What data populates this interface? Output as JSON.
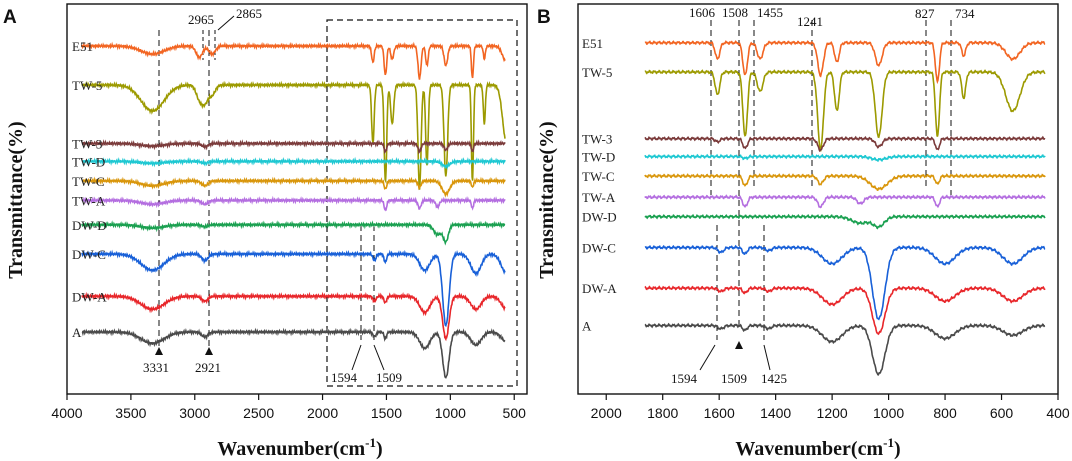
{
  "chart_data": [
    {
      "panel": "A",
      "type": "line",
      "title": "",
      "xlabel": "Wavenumber(cm-1)",
      "ylabel": "Transmittance(%)",
      "xlim": [
        4000,
        400
      ],
      "ylim": [
        0,
        1
      ],
      "x_ticks": [
        4000,
        3500,
        3000,
        2500,
        2000,
        1500,
        1000,
        500
      ],
      "y_ticks": [],
      "grid": false,
      "legend": "series names printed beside each curve on the left",
      "series": [
        {
          "name": "E51",
          "color": "#f26522",
          "offset": 0.92,
          "bands": [
            [
              3331,
              0.025,
              90
            ],
            [
              2965,
              0.035,
              25
            ],
            [
              2865,
              0.025,
              25
            ],
            [
              1606,
              0.05,
              10
            ],
            [
              1508,
              0.09,
              10
            ],
            [
              1455,
              0.04,
              12
            ],
            [
              1241,
              0.1,
              12
            ],
            [
              1183,
              0.06,
              10
            ],
            [
              1035,
              0.06,
              14
            ],
            [
              827,
              0.1,
              8
            ],
            [
              734,
              0.04,
              8
            ],
            [
              560,
              0.05,
              30
            ]
          ]
        },
        {
          "name": "TW-5",
          "color": "#9c9a00",
          "offset": 0.8,
          "bands": [
            [
              3331,
              0.08,
              90
            ],
            [
              2965,
              0.04,
              25
            ],
            [
              2921,
              0.05,
              25
            ],
            [
              2865,
              0.03,
              25
            ],
            [
              1606,
              0.18,
              10
            ],
            [
              1508,
              0.3,
              10
            ],
            [
              1455,
              0.12,
              12
            ],
            [
              1241,
              0.32,
              12
            ],
            [
              1183,
              0.25,
              10
            ],
            [
              1035,
              0.28,
              14
            ],
            [
              827,
              0.3,
              8
            ],
            [
              734,
              0.12,
              8
            ],
            [
              560,
              0.18,
              30
            ]
          ]
        },
        {
          "name": "TW-3",
          "color": "#7b3b3b",
          "offset": 0.62,
          "bands": [
            [
              3331,
              0.008,
              90
            ],
            [
              2921,
              0.01,
              25
            ],
            [
              1508,
              0.025,
              10
            ],
            [
              1241,
              0.025,
              12
            ],
            [
              1035,
              0.02,
              14
            ],
            [
              827,
              0.025,
              8
            ]
          ]
        },
        {
          "name": "TW-D",
          "color": "#1ec8d2",
          "offset": 0.565,
          "bands": [
            [
              3331,
              0.006,
              90
            ],
            [
              2921,
              0.006,
              25
            ],
            [
              1035,
              0.015,
              30
            ]
          ]
        },
        {
          "name": "TW-C",
          "color": "#d9960b",
          "offset": 0.505,
          "bands": [
            [
              3331,
              0.015,
              90
            ],
            [
              2921,
              0.015,
              25
            ],
            [
              1508,
              0.025,
              10
            ],
            [
              1241,
              0.02,
              12
            ],
            [
              1035,
              0.04,
              30
            ],
            [
              827,
              0.02,
              8
            ]
          ]
        },
        {
          "name": "TW-A",
          "color": "#b46ee0",
          "offset": 0.445,
          "bands": [
            [
              3331,
              0.012,
              90
            ],
            [
              2921,
              0.012,
              25
            ],
            [
              1508,
              0.03,
              10
            ],
            [
              1241,
              0.025,
              12
            ],
            [
              1100,
              0.02,
              14
            ],
            [
              827,
              0.025,
              8
            ]
          ]
        },
        {
          "name": "DW-D",
          "color": "#1aa050",
          "offset": 0.37,
          "bands": [
            [
              3331,
              0.01,
              90
            ],
            [
              2921,
              0.006,
              25
            ],
            [
              1100,
              0.03,
              30
            ],
            [
              1035,
              0.05,
              20
            ]
          ]
        },
        {
          "name": "DW-C",
          "color": "#1860d8",
          "offset": 0.28,
          "bands": [
            [
              3331,
              0.05,
              90
            ],
            [
              2921,
              0.02,
              25
            ],
            [
              1594,
              0.02,
              12
            ],
            [
              1509,
              0.025,
              10
            ],
            [
              1200,
              0.05,
              40
            ],
            [
              1035,
              0.22,
              25
            ],
            [
              800,
              0.06,
              40
            ],
            [
              560,
              0.06,
              40
            ]
          ]
        },
        {
          "name": "DW-A",
          "color": "#e8262a",
          "offset": 0.15,
          "bands": [
            [
              3331,
              0.04,
              90
            ],
            [
              2921,
              0.015,
              25
            ],
            [
              1594,
              0.015,
              12
            ],
            [
              1509,
              0.02,
              10
            ],
            [
              1200,
              0.05,
              40
            ],
            [
              1035,
              0.13,
              25
            ],
            [
              800,
              0.04,
              40
            ],
            [
              560,
              0.04,
              40
            ]
          ]
        },
        {
          "name": "A",
          "color": "#4a4a4a",
          "offset": 0.04,
          "bands": [
            [
              3331,
              0.035,
              90
            ],
            [
              2921,
              0.015,
              25
            ],
            [
              1594,
              0.015,
              12
            ],
            [
              1509,
              0.02,
              10
            ],
            [
              1200,
              0.05,
              40
            ],
            [
              1035,
              0.14,
              25
            ],
            [
              800,
              0.04,
              40
            ],
            [
              560,
              0.03,
              40
            ]
          ]
        }
      ],
      "annotations": [
        "3331",
        "2921",
        "2965",
        "2865",
        "1594",
        "1509"
      ]
    },
    {
      "panel": "B",
      "type": "line",
      "title": "",
      "xlabel": "Wavenumber(cm-1)",
      "ylabel": "Transmittance(%)",
      "xlim": [
        2100,
        400
      ],
      "ylim": [
        0,
        1
      ],
      "x_ticks": [
        2000,
        1800,
        1600,
        1400,
        1200,
        1000,
        800,
        600,
        400
      ],
      "y_ticks": [],
      "grid": false,
      "legend": "series names printed beside each curve on the left",
      "series": [
        {
          "name": "E51",
          "color": "#f26522",
          "offset": 0.93,
          "bands": [
            [
              1606,
              0.05,
              8
            ],
            [
              1508,
              0.1,
              8
            ],
            [
              1455,
              0.05,
              10
            ],
            [
              1241,
              0.1,
              10
            ],
            [
              1183,
              0.06,
              8
            ],
            [
              1035,
              0.07,
              12
            ],
            [
              827,
              0.12,
              7
            ],
            [
              734,
              0.04,
              7
            ],
            [
              560,
              0.05,
              25
            ]
          ]
        },
        {
          "name": "TW-5",
          "color": "#9c9a00",
          "offset": 0.84,
          "bands": [
            [
              1606,
              0.07,
              8
            ],
            [
              1508,
              0.2,
              8
            ],
            [
              1455,
              0.06,
              10
            ],
            [
              1241,
              0.24,
              10
            ],
            [
              1183,
              0.12,
              8
            ],
            [
              1035,
              0.2,
              12
            ],
            [
              827,
              0.2,
              7
            ],
            [
              734,
              0.08,
              7
            ],
            [
              560,
              0.12,
              25
            ]
          ]
        },
        {
          "name": "TW-3",
          "color": "#7b3b3b",
          "offset": 0.635,
          "bands": [
            [
              1606,
              0.01,
              8
            ],
            [
              1508,
              0.03,
              8
            ],
            [
              1241,
              0.035,
              10
            ],
            [
              1035,
              0.025,
              12
            ],
            [
              827,
              0.035,
              7
            ]
          ]
        },
        {
          "name": "TW-D",
          "color": "#1ec8d2",
          "offset": 0.58,
          "bands": [
            [
              1508,
              0.006,
              8
            ],
            [
              1035,
              0.01,
              25
            ]
          ]
        },
        {
          "name": "TW-C",
          "color": "#d9960b",
          "offset": 0.52,
          "bands": [
            [
              1508,
              0.03,
              8
            ],
            [
              1241,
              0.025,
              10
            ],
            [
              1035,
              0.04,
              30
            ],
            [
              827,
              0.025,
              7
            ]
          ]
        },
        {
          "name": "TW-A",
          "color": "#b46ee0",
          "offset": 0.455,
          "bands": [
            [
              1508,
              0.03,
              8
            ],
            [
              1241,
              0.03,
              10
            ],
            [
              1100,
              0.02,
              12
            ],
            [
              827,
              0.03,
              7
            ]
          ]
        },
        {
          "name": "DW-D",
          "color": "#1aa050",
          "offset": 0.395,
          "bands": [
            [
              1100,
              0.02,
              30
            ],
            [
              1035,
              0.03,
              20
            ]
          ]
        },
        {
          "name": "DW-C",
          "color": "#1860d8",
          "offset": 0.3,
          "bands": [
            [
              1594,
              0.015,
              10
            ],
            [
              1509,
              0.02,
              8
            ],
            [
              1425,
              0.01,
              10
            ],
            [
              1200,
              0.05,
              35
            ],
            [
              1035,
              0.22,
              22
            ],
            [
              800,
              0.05,
              35
            ],
            [
              560,
              0.05,
              35
            ]
          ]
        },
        {
          "name": "DW-A",
          "color": "#e8262a",
          "offset": 0.175,
          "bands": [
            [
              1594,
              0.01,
              10
            ],
            [
              1509,
              0.015,
              8
            ],
            [
              1425,
              0.01,
              10
            ],
            [
              1200,
              0.05,
              35
            ],
            [
              1035,
              0.14,
              22
            ],
            [
              800,
              0.04,
              35
            ],
            [
              560,
              0.04,
              35
            ]
          ]
        },
        {
          "name": "A",
          "color": "#4a4a4a",
          "offset": 0.06,
          "bands": [
            [
              1594,
              0.01,
              10
            ],
            [
              1509,
              0.015,
              8
            ],
            [
              1425,
              0.01,
              10
            ],
            [
              1200,
              0.05,
              35
            ],
            [
              1035,
              0.15,
              22
            ],
            [
              800,
              0.04,
              35
            ],
            [
              560,
              0.03,
              35
            ]
          ]
        }
      ],
      "annotations": [
        "1606",
        "1508",
        "1455",
        "1241",
        "827",
        "734",
        "1594",
        "1509",
        "1425"
      ]
    }
  ],
  "panels": {
    "a": {
      "label": "A",
      "xlabel": "Wavenumber(cm",
      "xlabel_sup": "-1",
      "xlabel_close": ")",
      "ylabel": "Transmittance(%)",
      "peaks_top": [
        "2965",
        "2865"
      ],
      "peaks_bottom": [
        "3331",
        "2921",
        "1594",
        "1509"
      ]
    },
    "b": {
      "label": "B",
      "xlabel": "Wavenumber(cm",
      "xlabel_sup": "-1",
      "xlabel_close": ")",
      "ylabel": "Transmittance(%)",
      "peaks_top": [
        "1606",
        "1508",
        "1455",
        "1241",
        "827",
        "734"
      ],
      "peaks_bottom": [
        "1594",
        "1509",
        "1425"
      ]
    }
  }
}
